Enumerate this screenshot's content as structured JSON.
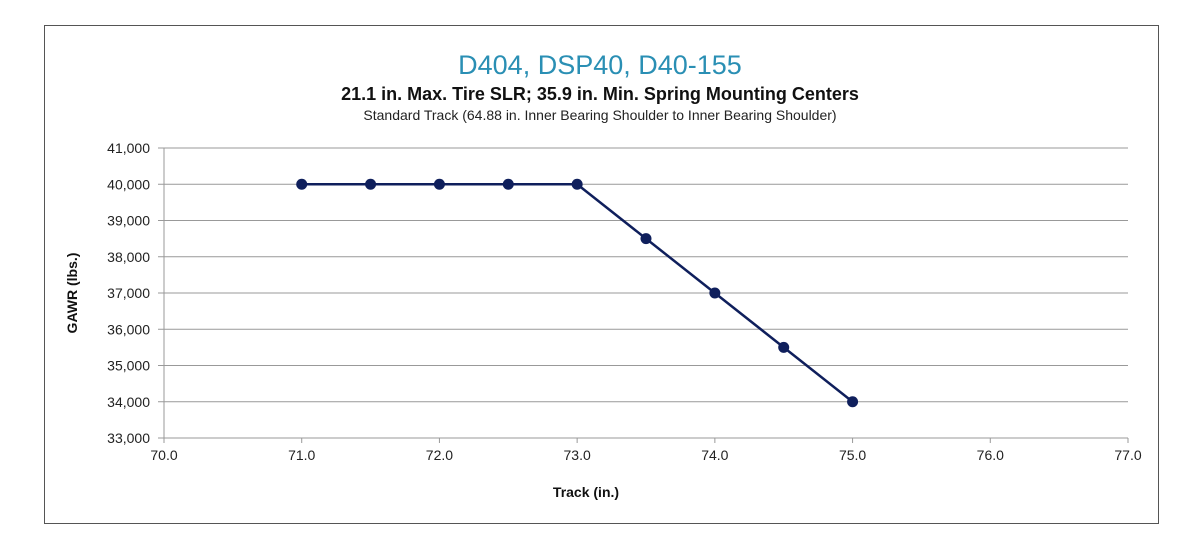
{
  "chart_data": {
    "type": "line",
    "title": "D404, DSP40, D40-155",
    "subtitle": "21.1 in. Max. Tire SLR; 35.9 in. Min. Spring Mounting Centers",
    "subtitle2": "Standard Track (64.88 in. Inner Bearing Shoulder to Inner Bearing Shoulder)",
    "xlabel": "Track (in.)",
    "ylabel": "GAWR (lbs.)",
    "xlim": [
      70,
      77
    ],
    "ylim": [
      33000,
      41000
    ],
    "xticks": [
      "70.0",
      "71.0",
      "72.0",
      "73.0",
      "74.0",
      "75.0",
      "76.0",
      "77.0"
    ],
    "yticks": [
      "33,000",
      "34,000",
      "35,000",
      "36,000",
      "37,000",
      "38,000",
      "39,000",
      "40,000",
      "41,000"
    ],
    "grid": true,
    "series": [
      {
        "name": "GAWR",
        "color": "#0f1f5c",
        "x": [
          71.0,
          71.5,
          72.0,
          72.5,
          73.0,
          73.5,
          74.0,
          74.5,
          75.0
        ],
        "y": [
          40000,
          40000,
          40000,
          40000,
          40000,
          38500,
          37000,
          35500,
          34000
        ]
      }
    ]
  }
}
